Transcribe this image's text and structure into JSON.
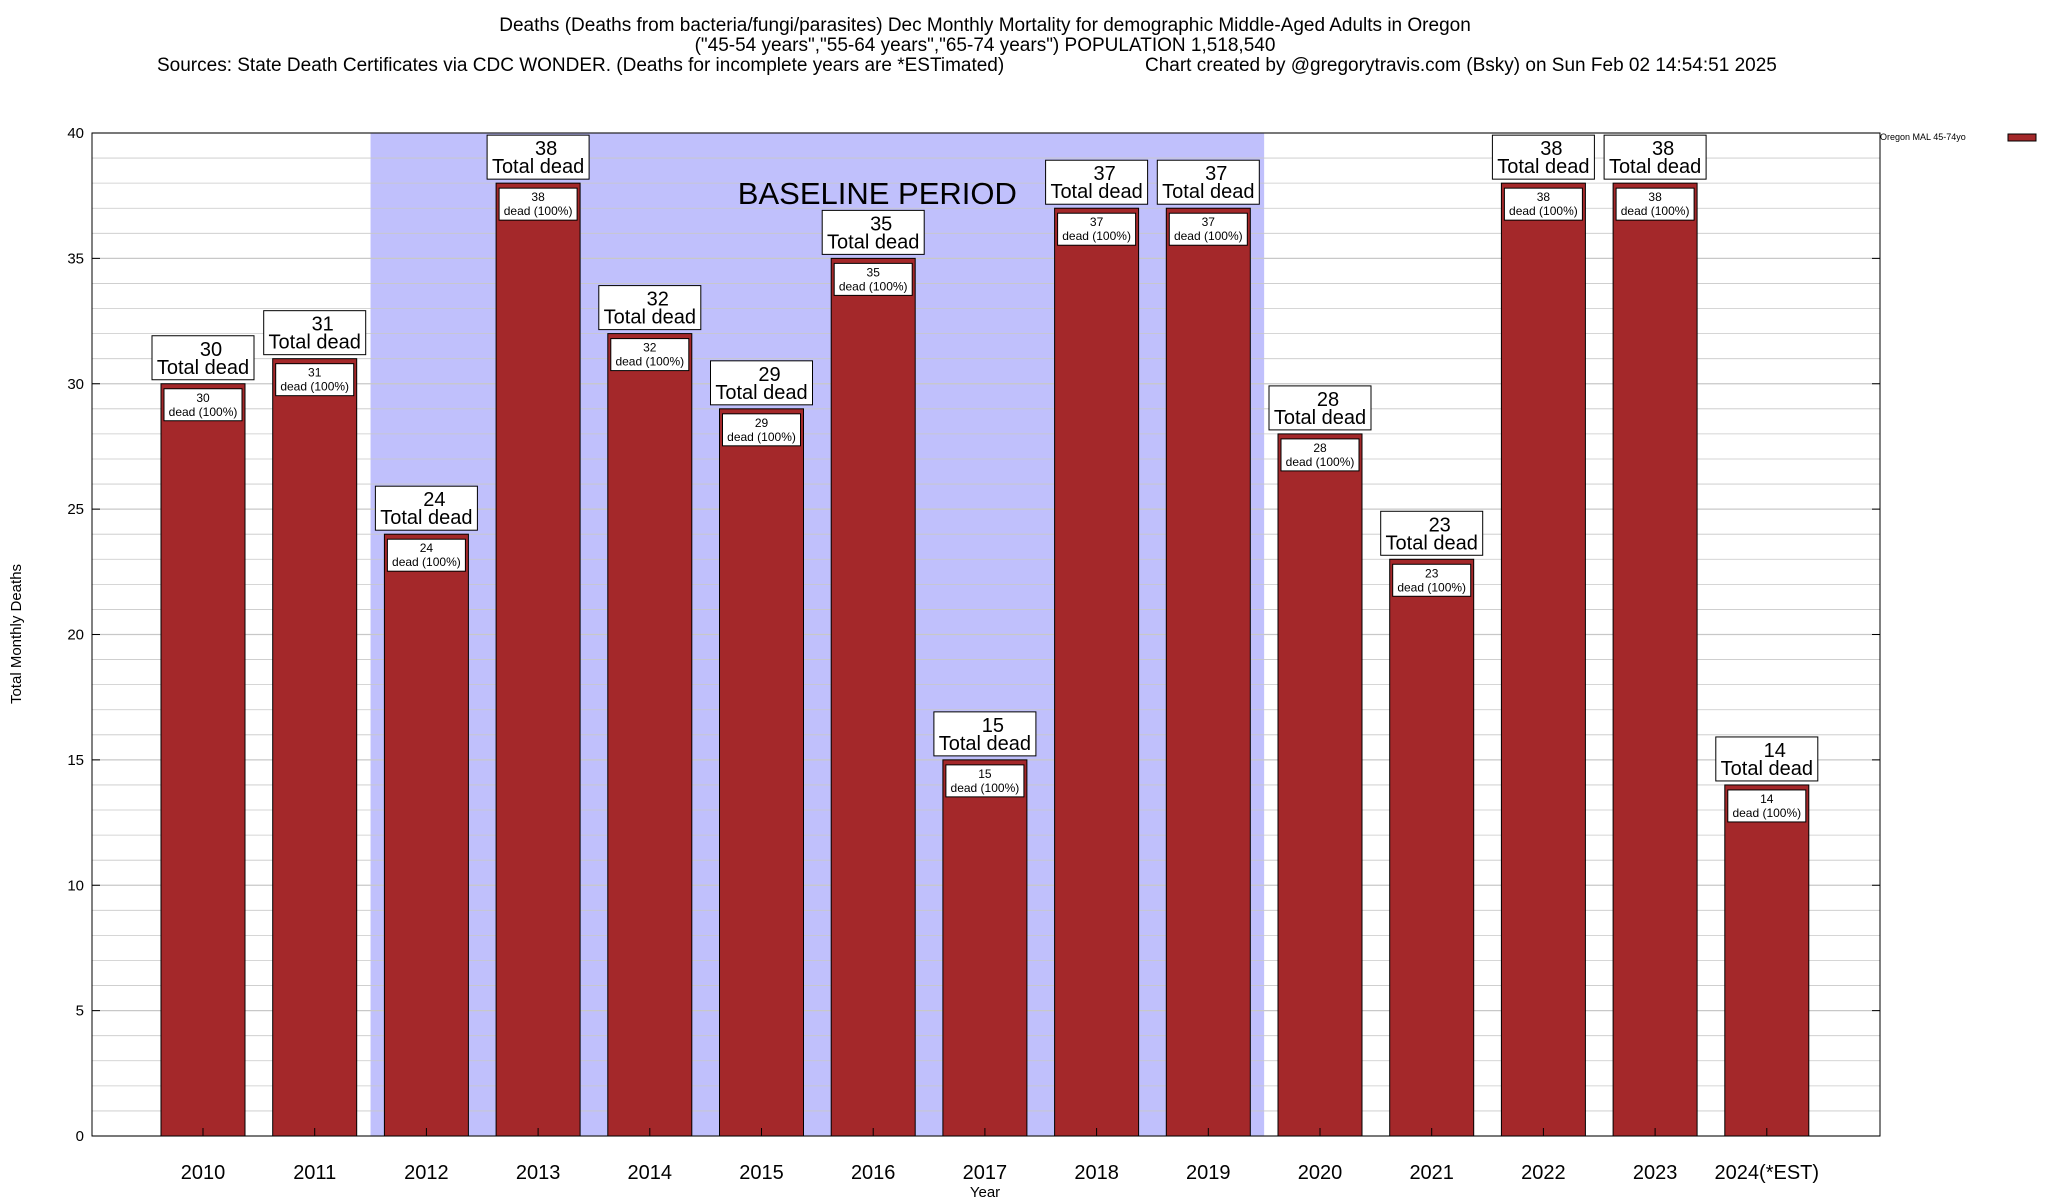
{
  "titles": {
    "line1": "Deaths (Deaths from bacteria/fungi/parasites) Dec Monthly Mortality for demographic Middle-Aged Adults in Oregon",
    "line2": "(\"45-54 years\",\"55-64 years\",\"65-74 years\") POPULATION 1,518,540",
    "line3_left": "Sources: State Death Certificates via CDC WONDER. (Deaths for incomplete years are *ESTimated)",
    "line3_right": "Chart created by @gregorytravis.com (Bsky) on Sun Feb 02 14:54:51 2025"
  },
  "colors": {
    "bar": "#a4282a",
    "baseline_band": "#c0c0fc",
    "grid": "#c8c8c8"
  },
  "chart_data": {
    "type": "bar",
    "categories": [
      "2010",
      "2011",
      "2012",
      "2013",
      "2014",
      "2015",
      "2016",
      "2017",
      "2018",
      "2019",
      "2020",
      "2021",
      "2022",
      "2023",
      "2024(*EST)"
    ],
    "series": [
      {
        "name": "Oregon MAL 45-74yo",
        "values": [
          30,
          31,
          24,
          38,
          32,
          29,
          35,
          15,
          37,
          37,
          28,
          23,
          38,
          38,
          14
        ]
      }
    ],
    "top_label_suffix": "Total dead",
    "inner_label_suffix": "dead (100%)",
    "xlabel": "Year",
    "ylabel": "Total Monthly Deaths",
    "ylim": [
      0,
      40
    ],
    "yticks": [
      0,
      5,
      10,
      15,
      20,
      25,
      30,
      35,
      40
    ],
    "minor_grid_step": 1,
    "annotations": [
      {
        "text": "BASELINE PERIOD",
        "x_start": "2012",
        "x_end": "2019"
      }
    ],
    "legend_position": "top-right",
    "grid": true
  }
}
